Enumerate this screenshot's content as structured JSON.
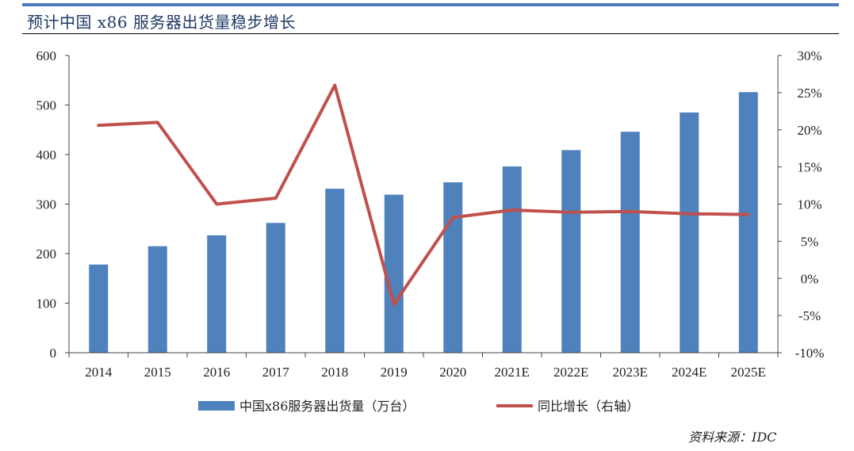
{
  "header": {
    "title": "预计中国 x86 服务器出货量稳步增长"
  },
  "footer": {
    "source": "资料来源：IDC"
  },
  "chart_data": {
    "type": "bar",
    "categories": [
      "2014",
      "2015",
      "2016",
      "2017",
      "2018",
      "2019",
      "2020",
      "2021E",
      "2022E",
      "2023E",
      "2024E",
      "2025E"
    ],
    "series": [
      {
        "name": "中国x86服务器出货量（万台）",
        "type": "bar",
        "axis": "left",
        "color": "#4f81bd",
        "values": [
          178,
          215,
          237,
          262,
          331,
          319,
          344,
          376,
          409,
          446,
          485,
          526
        ]
      },
      {
        "name": "同比增长（右轴）",
        "type": "line",
        "axis": "right",
        "color": "#c0504d",
        "values": [
          20.6,
          21.0,
          10.0,
          10.8,
          26.0,
          -3.5,
          8.2,
          9.2,
          8.9,
          9.0,
          8.7,
          8.6
        ]
      }
    ],
    "y_left": {
      "min": 0,
      "max": 600,
      "ticks": [
        "0",
        "100",
        "200",
        "300",
        "400",
        "500",
        "600"
      ]
    },
    "y_right": {
      "min": -10,
      "max": 30,
      "ticks": [
        "-10%",
        "-5%",
        "0%",
        "5%",
        "10%",
        "15%",
        "20%",
        "25%",
        "30%"
      ]
    },
    "grid": false,
    "legend": "bottom"
  }
}
